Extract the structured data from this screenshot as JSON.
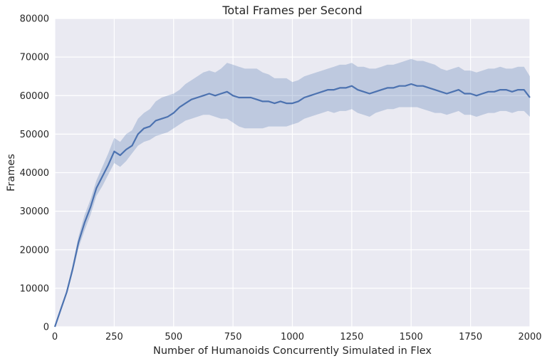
{
  "chart_data": {
    "type": "line",
    "title": "Total Frames per Second",
    "xlabel": "Number of Humanoids Concurrently Simulated in Flex",
    "ylabel": "Frames",
    "xlim": [
      0,
      2000
    ],
    "ylim": [
      0,
      80000
    ],
    "xticks": [
      0,
      250,
      500,
      750,
      1000,
      1250,
      1500,
      1750,
      2000
    ],
    "yticks": [
      0,
      10000,
      20000,
      30000,
      40000,
      50000,
      60000,
      70000,
      80000
    ],
    "grid": true,
    "colors": {
      "background": "#eaeaf2",
      "grid": "#ffffff",
      "line": "#4c72b0",
      "band": "#4c72b0"
    },
    "series": [
      {
        "x": [
          0,
          25,
          50,
          75,
          100,
          125,
          150,
          175,
          200,
          225,
          250,
          275,
          300,
          325,
          350,
          375,
          400,
          425,
          450,
          475,
          500,
          525,
          550,
          575,
          600,
          625,
          650,
          675,
          700,
          725,
          750,
          775,
          800,
          825,
          850,
          875,
          900,
          925,
          950,
          975,
          1000,
          1025,
          1050,
          1075,
          1100,
          1125,
          1150,
          1175,
          1200,
          1225,
          1250,
          1275,
          1300,
          1325,
          1350,
          1375,
          1400,
          1425,
          1450,
          1475,
          1500,
          1525,
          1550,
          1575,
          1600,
          1625,
          1650,
          1675,
          1700,
          1725,
          1750,
          1775,
          1800,
          1825,
          1850,
          1875,
          1900,
          1925,
          1950,
          1975,
          2000
        ],
        "mean": [
          0,
          4500,
          9000,
          15000,
          22000,
          27000,
          31000,
          36000,
          39000,
          42000,
          45500,
          44500,
          46000,
          47000,
          50000,
          51500,
          52000,
          53500,
          54000,
          54500,
          55500,
          57000,
          58000,
          59000,
          59500,
          60000,
          60500,
          60000,
          60500,
          61000,
          60000,
          59500,
          59500,
          59500,
          59000,
          58500,
          58500,
          58000,
          58500,
          58000,
          58000,
          58500,
          59500,
          60000,
          60500,
          61000,
          61500,
          61500,
          62000,
          62000,
          62500,
          61500,
          61000,
          60500,
          61000,
          61500,
          62000,
          62000,
          62500,
          62500,
          63000,
          62500,
          62500,
          62000,
          61500,
          61000,
          60500,
          61000,
          61500,
          60500,
          60500,
          60000,
          60500,
          61000,
          61000,
          61500,
          61500,
          61000,
          61500,
          61500,
          59500
        ],
        "lower": [
          0,
          4000,
          8500,
          14000,
          20500,
          25000,
          29000,
          34000,
          36500,
          39500,
          42500,
          41500,
          43000,
          45000,
          47000,
          48000,
          48500,
          49500,
          50000,
          50500,
          51500,
          52500,
          53500,
          54000,
          54500,
          55000,
          55000,
          54500,
          54000,
          54000,
          53000,
          52000,
          51500,
          51500,
          51500,
          51500,
          52000,
          52000,
          52000,
          52000,
          52500,
          53000,
          54000,
          54500,
          55000,
          55500,
          56000,
          55500,
          56000,
          56000,
          56500,
          55500,
          55000,
          54500,
          55500,
          56000,
          56500,
          56500,
          57000,
          57000,
          57000,
          57000,
          56500,
          56000,
          55500,
          55500,
          55000,
          55500,
          56000,
          55000,
          55000,
          54500,
          55000,
          55500,
          55500,
          56000,
          56000,
          55500,
          56000,
          56000,
          54500
        ],
        "upper": [
          0,
          5000,
          9500,
          16000,
          23500,
          29000,
          33000,
          38000,
          41500,
          45000,
          49000,
          48000,
          50000,
          51000,
          54000,
          55500,
          56500,
          58500,
          59500,
          60000,
          60500,
          61500,
          63000,
          64000,
          65000,
          66000,
          66500,
          66000,
          67000,
          68500,
          68000,
          67500,
          67000,
          67000,
          67000,
          66000,
          65500,
          64500,
          64500,
          64500,
          63500,
          64000,
          65000,
          65500,
          66000,
          66500,
          67000,
          67500,
          68000,
          68000,
          68500,
          67500,
          67500,
          67000,
          67000,
          67500,
          68000,
          68000,
          68500,
          69000,
          69500,
          69000,
          69000,
          68500,
          68000,
          67000,
          66500,
          67000,
          67500,
          66500,
          66500,
          66000,
          66500,
          67000,
          67000,
          67500,
          67000,
          67000,
          67500,
          67500,
          65000
        ]
      }
    ]
  }
}
